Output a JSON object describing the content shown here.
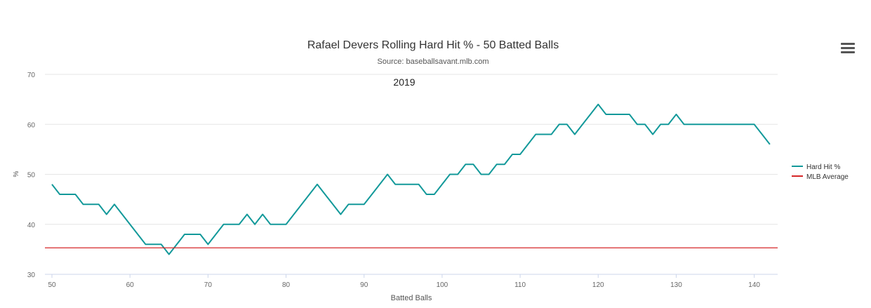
{
  "menu": {
    "icon": "hamburger-menu-icon"
  },
  "chart_data": {
    "type": "line",
    "title": "Rafael Devers Rolling Hard Hit % - 50 Batted Balls",
    "subtitle": "Source: baseballsavant.mlb.com",
    "annotation": "2019",
    "xlabel": "Batted Balls",
    "ylabel": "%",
    "xlim": [
      50,
      142
    ],
    "ylim": [
      30,
      70
    ],
    "xticks": [
      50,
      60,
      70,
      80,
      90,
      100,
      110,
      120,
      130,
      140
    ],
    "yticks": [
      30,
      40,
      50,
      60,
      70
    ],
    "grid": true,
    "legend_position": "right",
    "series": [
      {
        "name": "Hard Hit %",
        "color": "#13999a",
        "x": [
          50,
          51,
          52,
          53,
          54,
          55,
          56,
          57,
          58,
          59,
          60,
          61,
          62,
          63,
          64,
          65,
          66,
          67,
          68,
          69,
          70,
          71,
          72,
          73,
          74,
          75,
          76,
          77,
          78,
          79,
          80,
          81,
          82,
          83,
          84,
          85,
          86,
          87,
          88,
          89,
          90,
          91,
          92,
          93,
          94,
          95,
          96,
          97,
          98,
          99,
          100,
          101,
          102,
          103,
          104,
          105,
          106,
          107,
          108,
          109,
          110,
          111,
          112,
          113,
          114,
          115,
          116,
          117,
          118,
          119,
          120,
          121,
          122,
          123,
          124,
          125,
          126,
          127,
          128,
          129,
          130,
          131,
          132,
          133,
          134,
          135,
          136,
          137,
          138,
          139,
          140,
          141,
          142
        ],
        "values": [
          48,
          46,
          46,
          46,
          44,
          44,
          44,
          42,
          44,
          42,
          40,
          38,
          36,
          36,
          36,
          34,
          36,
          38,
          38,
          38,
          36,
          38,
          40,
          40,
          40,
          42,
          40,
          42,
          40,
          40,
          40,
          42,
          44,
          46,
          48,
          46,
          44,
          42,
          44,
          44,
          44,
          46,
          48,
          50,
          48,
          48,
          48,
          48,
          46,
          46,
          48,
          50,
          50,
          52,
          52,
          50,
          50,
          52,
          52,
          54,
          54,
          56,
          58,
          58,
          58,
          60,
          60,
          58,
          60,
          62,
          64,
          62,
          62,
          62,
          62,
          60,
          60,
          58,
          60,
          60,
          62,
          60,
          60,
          60,
          60,
          60,
          60,
          60,
          60,
          60,
          60,
          58,
          56
        ]
      },
      {
        "name": "MLB Average",
        "color": "#d62728",
        "constant": 35.3
      }
    ]
  }
}
